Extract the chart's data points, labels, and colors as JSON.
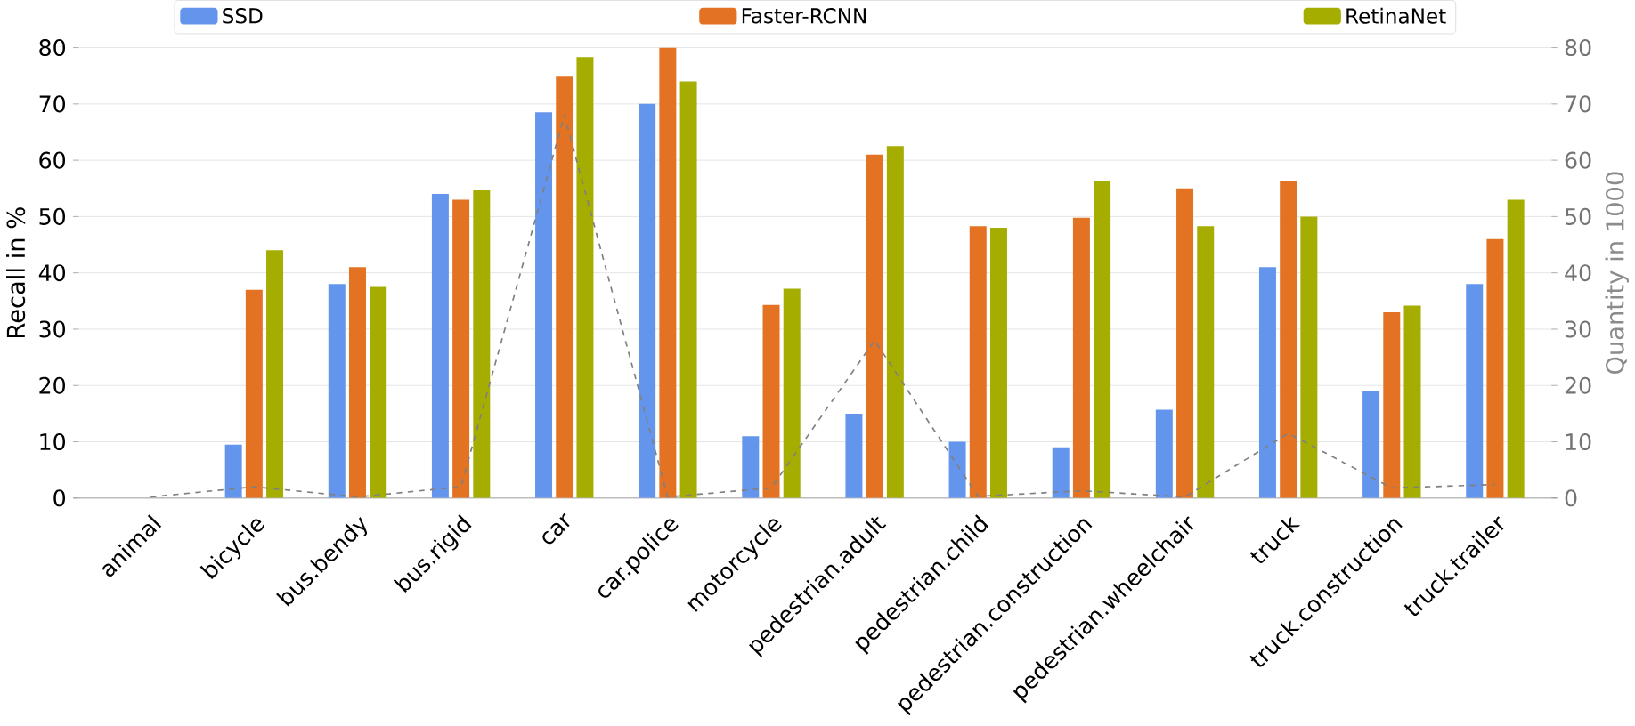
{
  "chart_data": {
    "type": "bar",
    "ylabel": "Recall in %",
    "y2label": "Quantity in 1000",
    "categories": [
      "animal",
      "bicycle",
      "bus.bendy",
      "bus.rigid",
      "car",
      "car.police",
      "motorcycle",
      "pedestrian.adult",
      "pedestrian.child",
      "pedestrian.construction",
      "pedestrian.wheelchair",
      "truck",
      "truck.construction",
      "truck.trailer"
    ],
    "series": [
      {
        "name": "SSD",
        "color": "#6495ed",
        "values": [
          0,
          9.5,
          38,
          54,
          68.5,
          70,
          11,
          15,
          10,
          9,
          15.7,
          41,
          19,
          38
        ]
      },
      {
        "name": "Faster-RCNN",
        "color": "#e37222",
        "values": [
          0,
          37,
          41,
          53,
          75,
          80,
          34.3,
          61,
          48.3,
          49.8,
          55,
          56.3,
          33,
          46
        ]
      },
      {
        "name": "RetinaNet",
        "color": "#a5ad00",
        "values": [
          0,
          44,
          37.5,
          54.7,
          78.3,
          74,
          37.2,
          62.5,
          48,
          56.3,
          48.3,
          50,
          34.2,
          53
        ]
      },
      {
        "type": "line",
        "axis": "y2",
        "color": "#808080",
        "line_style": "dashed",
        "values": [
          0.2,
          2,
          0.2,
          2,
          68,
          0.2,
          1.8,
          28,
          0.3,
          1.3,
          0.2,
          11.5,
          1.8,
          2.4
        ]
      }
    ],
    "ylim": [
      0,
      80
    ],
    "yticks": [
      0,
      10,
      20,
      30,
      40,
      50,
      60,
      70,
      80
    ],
    "y2lim": [
      0,
      80
    ],
    "y2ticks": [
      0,
      10,
      20,
      30,
      40,
      50,
      60,
      70,
      80
    ],
    "grid": "y",
    "legend": "top"
  }
}
